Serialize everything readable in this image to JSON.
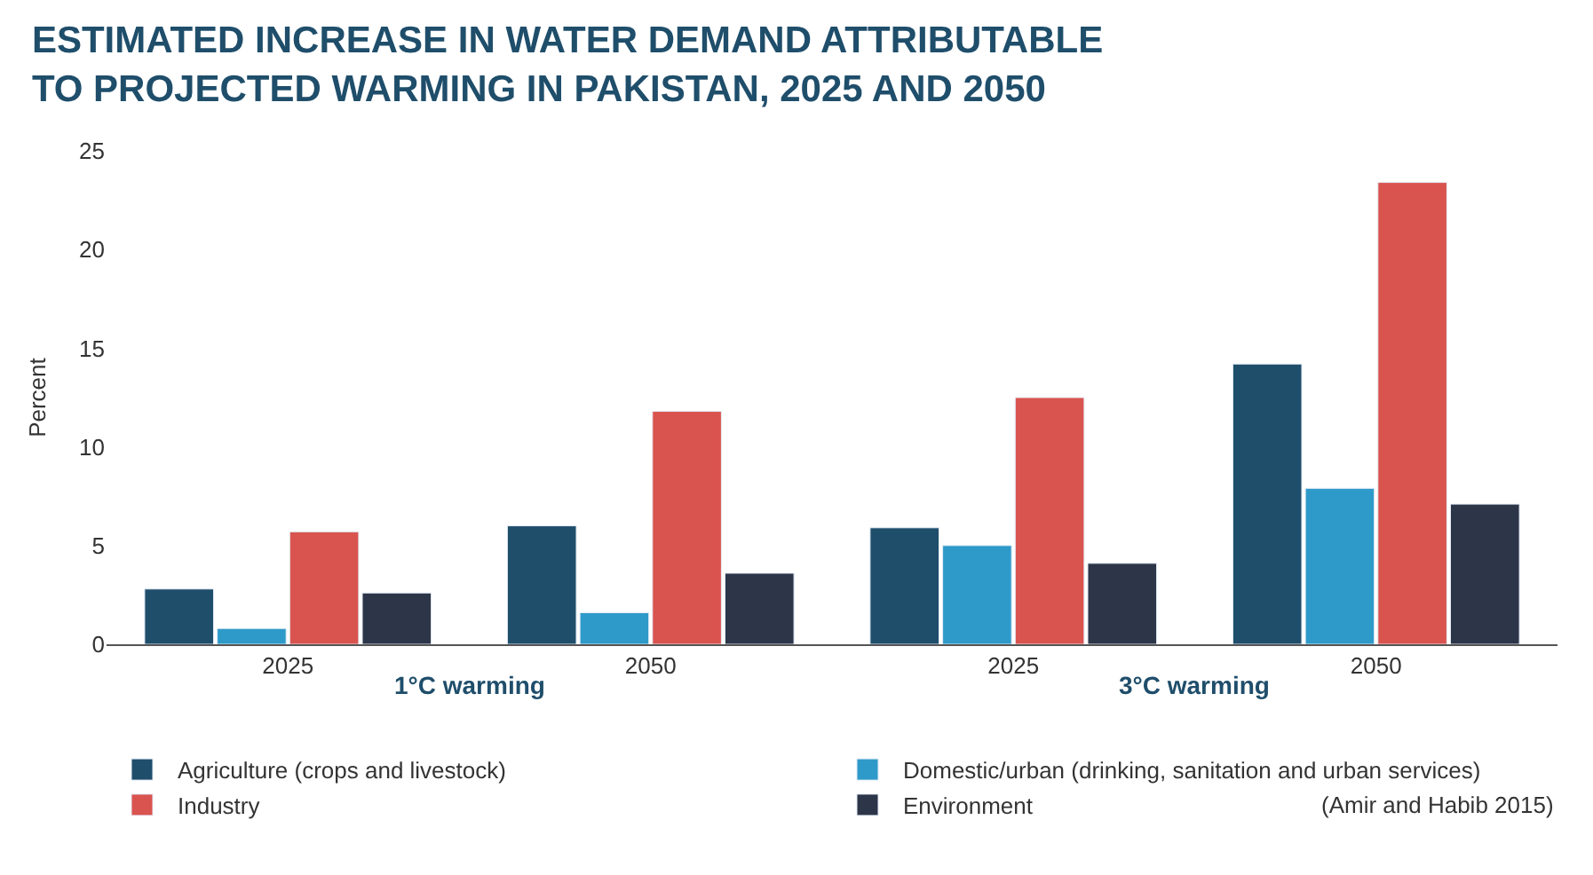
{
  "chart_data": {
    "type": "bar",
    "title": "ESTIMATED INCREASE IN WATER DEMAND ATTRIBUTABLE\nTO PROJECTED WARMING IN PAKISTAN, 2025 AND 2050",
    "categories": [
      "2025",
      "2050",
      "2025",
      "2050"
    ],
    "series": [
      {
        "name": "Agriculture (crops and livestock)",
        "color": "#1f4e6b",
        "values": [
          2.8,
          6.0,
          5.9,
          14.2
        ]
      },
      {
        "name": "Domestic/urban (drinking, sanitation and urban services)",
        "color": "#2e9ac9",
        "values": [
          0.8,
          1.6,
          5.0,
          7.9
        ]
      },
      {
        "name": "Industry",
        "color": "#d9534f",
        "values": [
          5.7,
          11.8,
          12.5,
          23.4
        ]
      },
      {
        "name": "Environment",
        "color": "#2d3648",
        "values": [
          2.6,
          3.6,
          4.1,
          7.1
        ]
      }
    ],
    "ylabel": "Percent",
    "ylim": [
      0,
      25
    ],
    "yticks": [
      0,
      5,
      10,
      15,
      20,
      25
    ],
    "annotations": [
      "1°C warming",
      "3°C warming",
      "(Amir and Habib 2015)"
    ],
    "legend": "bottom"
  }
}
